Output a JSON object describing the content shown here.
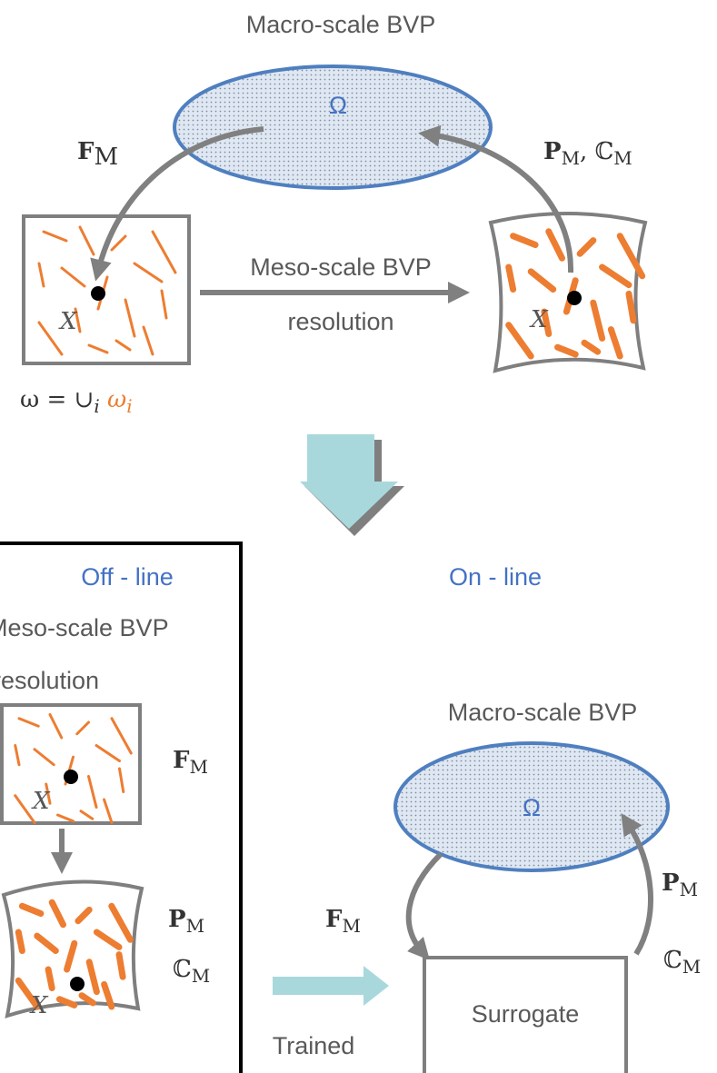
{
  "top": {
    "title": "Macro-scale BVP",
    "domain": "Ω",
    "left_label": {
      "sym": "F",
      "sub": "M"
    },
    "right_label": {
      "sym": "P",
      "sub": "M",
      "sep": ", ",
      "sym2": "ℂ",
      "sub2": "M"
    },
    "middle_arrow": [
      "Meso-scale BVP",
      "resolution"
    ],
    "point_left": "X",
    "point_right": "X",
    "omega": {
      "lhs": "ω = ∪",
      "sub": "i",
      "rhs": " ω",
      "rhs_sub": "i"
    }
  },
  "offline": {
    "title": "Off - line",
    "text": [
      "Meso-scale BVP",
      "resolution"
    ],
    "label_f": {
      "sym": "F",
      "sub": "M"
    },
    "label_p": {
      "sym": "P",
      "sub": "M"
    },
    "label_c": {
      "sym": "ℂ",
      "sub": "M"
    },
    "point_top": "X",
    "point_bottom": "X",
    "arrow_label": "Trained"
  },
  "online": {
    "title": "On - line",
    "macro_title": "Macro-scale BVP",
    "domain": "Ω",
    "label_f": {
      "sym": "F",
      "sub": "M"
    },
    "label_p": {
      "sym": "P",
      "sub": "M"
    },
    "label_c": {
      "sym": "ℂ",
      "sub": "M"
    },
    "surrogate": "Surrogate"
  }
}
